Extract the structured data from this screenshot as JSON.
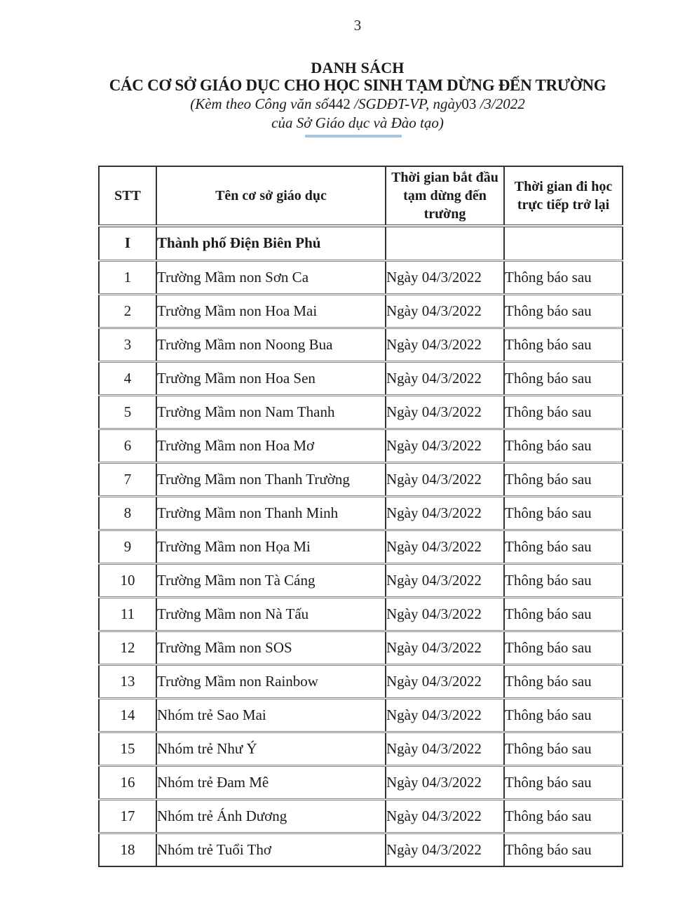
{
  "page_number": "3",
  "header": {
    "title_line1": "DANH SÁCH",
    "title_line2": "CÁC CƠ SỞ GIÁO DỤC CHO HỌC SINH TẠM DỪNG ĐẾN TRƯỜNG",
    "subtitle_prefix": "(Kèm theo Công văn số",
    "doc_number": "442",
    "subtitle_mid": " /SGDĐT-VP, ngày",
    "day_number": "03",
    "subtitle_suffix": " /3/2022",
    "subtitle_line2": "của Sở Giáo dục và Đào tạo)"
  },
  "colors": {
    "divider_blue": "#a9c7dc"
  },
  "table": {
    "columns": [
      "STT",
      "Tên cơ sở giáo dục",
      "Thời gian bắt đầu tạm dừng đến trường",
      "Thời gian đi học trực tiếp trở lại"
    ],
    "section": {
      "stt": "I",
      "name": "Thành phố Điện Biên Phủ",
      "start": "",
      "return": ""
    },
    "rows": [
      {
        "stt": "1",
        "name": "Trường Mầm non Sơn Ca",
        "start": "Ngày 04/3/2022",
        "return": "Thông báo sau"
      },
      {
        "stt": "2",
        "name": "Trường Mầm non Hoa Mai",
        "start": "Ngày 04/3/2022",
        "return": "Thông báo sau"
      },
      {
        "stt": "3",
        "name": "Trường Mầm non Noong Bua",
        "start": "Ngày 04/3/2022",
        "return": "Thông báo sau"
      },
      {
        "stt": "4",
        "name": "Trường Mầm non Hoa Sen",
        "start": "Ngày 04/3/2022",
        "return": "Thông báo sau"
      },
      {
        "stt": "5",
        "name": "Trường Mầm non Nam Thanh",
        "start": "Ngày 04/3/2022",
        "return": "Thông báo sau"
      },
      {
        "stt": "6",
        "name": "Trường Mầm non Hoa Mơ",
        "start": "Ngày 04/3/2022",
        "return": "Thông báo sau"
      },
      {
        "stt": "7",
        "name": "Trường Mầm non Thanh Trường",
        "start": "Ngày 04/3/2022",
        "return": "Thông báo sau"
      },
      {
        "stt": "8",
        "name": "Trường Mầm non Thanh Minh",
        "start": "Ngày 04/3/2022",
        "return": "Thông báo sau"
      },
      {
        "stt": "9",
        "name": "Trường Mầm non Họa Mi",
        "start": "Ngày 04/3/2022",
        "return": "Thông báo sau"
      },
      {
        "stt": "10",
        "name": "Trường Mầm non Tà Cáng",
        "start": "Ngày 04/3/2022",
        "return": "Thông báo sau"
      },
      {
        "stt": "11",
        "name": "Trường Mầm non Nà Tấu",
        "start": "Ngày 04/3/2022",
        "return": "Thông báo sau"
      },
      {
        "stt": "12",
        "name": "Trường Mầm non SOS",
        "start": "Ngày 04/3/2022",
        "return": "Thông báo sau"
      },
      {
        "stt": "13",
        "name": "Trường Mầm non Rainbow",
        "start": "Ngày 04/3/2022",
        "return": "Thông báo sau"
      },
      {
        "stt": "14",
        "name": "Nhóm trẻ Sao Mai",
        "start": "Ngày 04/3/2022",
        "return": "Thông báo sau"
      },
      {
        "stt": "15",
        "name": "Nhóm trẻ Như Ý",
        "start": "Ngày 04/3/2022",
        "return": "Thông báo sau"
      },
      {
        "stt": "16",
        "name": "Nhóm trẻ Đam Mê",
        "start": "Ngày 04/3/2022",
        "return": "Thông báo sau"
      },
      {
        "stt": "17",
        "name": "Nhóm trẻ Ánh Dương",
        "start": "Ngày 04/3/2022",
        "return": "Thông báo sau"
      },
      {
        "stt": "18",
        "name": "Nhóm trẻ Tuổi Thơ",
        "start": "Ngày 04/3/2022",
        "return": "Thông báo sau"
      }
    ]
  }
}
